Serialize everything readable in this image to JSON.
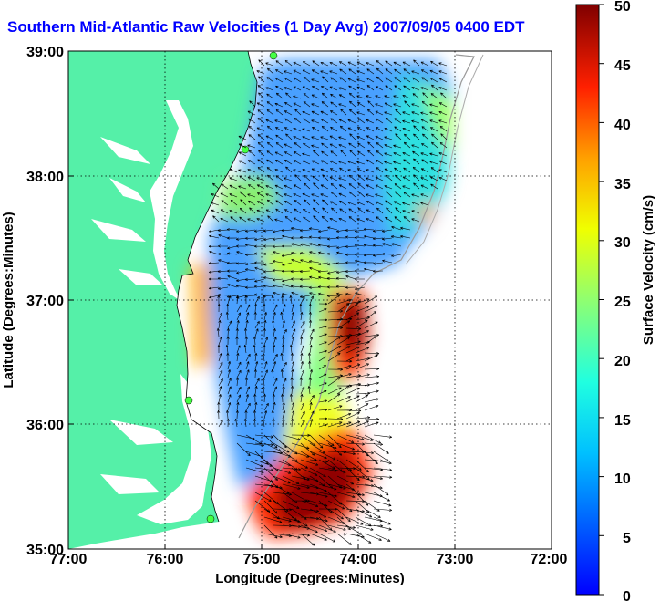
{
  "title": "Southern Mid-Atlantic Raw Velocities (1 Day Avg) 2007/09/05 0400 EDT",
  "xlabel": "Longitude (Degrees:Minutes)",
  "ylabel": "Latitude (Degrees:Minutes)",
  "colorbar_label": "Surface Velocity (cm/s)",
  "x_ticks": [
    "77:00",
    "76:00",
    "75:00",
    "74:00",
    "73:00",
    "72:00"
  ],
  "y_ticks": [
    "35:00",
    "36:00",
    "37:00",
    "38:00",
    "39:00"
  ],
  "colorbar_ticks": [
    "0",
    "5",
    "10",
    "15",
    "20",
    "25",
    "30",
    "35",
    "40",
    "45",
    "50"
  ],
  "map": {
    "lon_range": [
      -77,
      -72
    ],
    "lat_range": [
      35,
      39
    ],
    "colorbar_range": [
      0,
      50
    ],
    "land_color": "#55f0a8",
    "grid": "dotted",
    "colormap": "jet"
  }
}
